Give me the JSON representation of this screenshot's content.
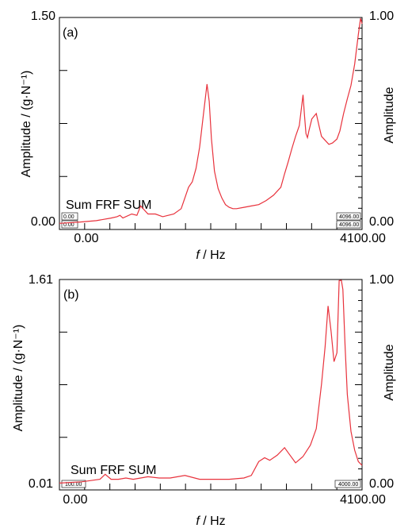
{
  "chart_data": [
    {
      "type": "line",
      "panel_label": "(a)",
      "xlabel_italic": "f",
      "xlabel_rest": " / Hz",
      "ylabel": "Amplitude / (g·N⁻¹)",
      "y2label": "Amplitude",
      "xlim": [
        0,
        4100
      ],
      "ylim": [
        0,
        1.5
      ],
      "y2lim": [
        0,
        1.0
      ],
      "xtick_labels": [
        "0.00",
        "4100.00"
      ],
      "ytick_labels": [
        "0.00",
        "1.50"
      ],
      "y2tick_labels": [
        "0.00",
        "1.00"
      ],
      "annotation": "Sum FRF SUM",
      "corner_boxes": {
        "left_top": "0.00",
        "left_bottom": "0.00",
        "right_top": "4096.00",
        "right_bottom": "4096.00"
      },
      "grid": false,
      "series": [
        {
          "color": "#e8323c",
          "x": [
            0,
            280,
            500,
            700,
            780,
            820,
            860,
            980,
            1050,
            1100,
            1200,
            1300,
            1400,
            1550,
            1650,
            1750,
            1800,
            1850,
            1900,
            1950,
            2000,
            2030,
            2060,
            2100,
            2150,
            2200,
            2250,
            2300,
            2350,
            2400,
            2500,
            2600,
            2700,
            2800,
            2900,
            3000,
            3050,
            3100,
            3150,
            3200,
            3250,
            3300,
            3320,
            3340,
            3360,
            3380,
            3420,
            3480,
            3520,
            3550,
            3600,
            3650,
            3700,
            3760,
            3800,
            3850,
            3900,
            3950,
            4000,
            4050,
            4080,
            4100
          ],
          "y": [
            0.01,
            0.02,
            0.03,
            0.05,
            0.06,
            0.07,
            0.05,
            0.08,
            0.07,
            0.14,
            0.08,
            0.08,
            0.06,
            0.08,
            0.12,
            0.28,
            0.32,
            0.42,
            0.58,
            0.82,
            1.05,
            0.92,
            0.64,
            0.4,
            0.27,
            0.2,
            0.15,
            0.13,
            0.12,
            0.12,
            0.13,
            0.14,
            0.15,
            0.18,
            0.22,
            0.28,
            0.38,
            0.47,
            0.57,
            0.66,
            0.74,
            0.97,
            0.82,
            0.68,
            0.65,
            0.7,
            0.79,
            0.83,
            0.73,
            0.66,
            0.63,
            0.6,
            0.61,
            0.64,
            0.7,
            0.83,
            0.94,
            1.04,
            1.2,
            1.42,
            1.6,
            1.5
          ]
        }
      ]
    },
    {
      "type": "line",
      "panel_label": "(b)",
      "xlabel_italic": "f",
      "xlabel_rest": " / Hz",
      "ylabel": "Amplitude / (g·N⁻¹)",
      "y2label": "Amplitude",
      "xlim": [
        0,
        4100
      ],
      "ylim": [
        0.01,
        1.61
      ],
      "y2lim": [
        0,
        1.0
      ],
      "xtick_labels": [
        "0.00",
        "4100.00"
      ],
      "ytick_labels": [
        "0.01",
        "1.61"
      ],
      "y2tick_labels": [
        "0.00",
        "1.00"
      ],
      "annotation": "Sum FRF SUM",
      "corner_boxes": {
        "left_top": "",
        "left_bottom": "100.00",
        "right_top": "",
        "right_bottom": "4000.00"
      },
      "grid": false,
      "series": [
        {
          "color": "#e8323c",
          "x": [
            0,
            300,
            550,
            620,
            700,
            800,
            900,
            1000,
            1100,
            1200,
            1350,
            1500,
            1700,
            1900,
            2100,
            2300,
            2500,
            2600,
            2700,
            2780,
            2850,
            2950,
            3050,
            3100,
            3200,
            3300,
            3400,
            3480,
            3550,
            3600,
            3640,
            3680,
            3720,
            3760,
            3790,
            3820,
            3840,
            3870,
            3900,
            3950,
            4000,
            4050,
            4100
          ],
          "y": [
            0.02,
            0.03,
            0.05,
            0.09,
            0.05,
            0.05,
            0.06,
            0.05,
            0.06,
            0.07,
            0.06,
            0.06,
            0.08,
            0.05,
            0.05,
            0.05,
            0.06,
            0.08,
            0.19,
            0.22,
            0.2,
            0.24,
            0.3,
            0.26,
            0.18,
            0.23,
            0.32,
            0.45,
            0.8,
            1.1,
            1.42,
            1.22,
            0.98,
            1.05,
            1.62,
            1.72,
            1.55,
            1.1,
            0.72,
            0.43,
            0.28,
            0.19,
            0.16
          ]
        }
      ]
    }
  ]
}
